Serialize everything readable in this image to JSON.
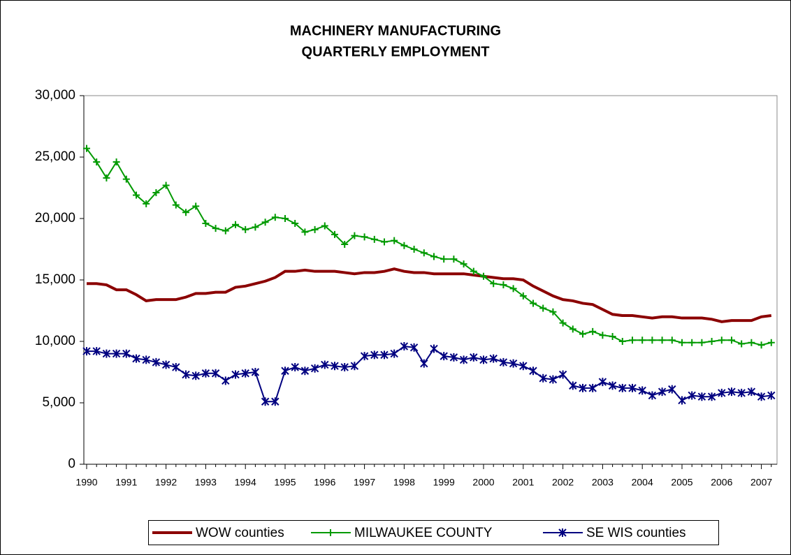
{
  "chart_data": {
    "type": "line",
    "title": "MACHINERY MANUFACTURING",
    "subtitle": "QUARTERLY EMPLOYMENT",
    "categories": [
      "1990",
      null,
      null,
      null,
      "1991",
      null,
      null,
      null,
      "1992",
      null,
      null,
      null,
      "1993",
      null,
      null,
      null,
      "1994",
      null,
      null,
      null,
      "1995",
      null,
      null,
      null,
      "1996",
      null,
      null,
      null,
      "1997",
      null,
      null,
      null,
      "1998",
      null,
      null,
      null,
      "1999",
      null,
      null,
      null,
      "2000",
      null,
      null,
      null,
      "2001",
      null,
      null,
      null,
      "2002",
      null,
      null,
      null,
      "2003",
      null,
      null,
      null,
      "2004",
      null,
      null,
      null,
      "2005",
      null,
      null,
      null,
      "2006",
      null,
      null,
      null,
      "2007",
      null
    ],
    "series": [
      {
        "name": "WOW counties",
        "color": "#8b0000",
        "marker": "none",
        "values": [
          14700,
          14700,
          14600,
          14200,
          14200,
          13800,
          13300,
          13400,
          13400,
          13400,
          13600,
          13900,
          13900,
          14000,
          14000,
          14400,
          14500,
          14700,
          14900,
          15200,
          15700,
          15700,
          15800,
          15700,
          15700,
          15700,
          15600,
          15500,
          15600,
          15600,
          15700,
          15900,
          15700,
          15600,
          15600,
          15500,
          15500,
          15500,
          15500,
          15400,
          15300,
          15200,
          15100,
          15100,
          15000,
          14500,
          14100,
          13700,
          13400,
          13300,
          13100,
          13000,
          12600,
          12200,
          12100,
          12100,
          12000,
          11900,
          12000,
          12000,
          11900,
          11900,
          11900,
          11800,
          11600,
          11700,
          11700,
          11700,
          12000,
          12100
        ]
      },
      {
        "name": "MILWAUKEE COUNTY",
        "color": "#009a00",
        "marker": "plus",
        "values": [
          25700,
          24600,
          23300,
          24600,
          23200,
          21900,
          21200,
          22100,
          22700,
          21100,
          20500,
          21000,
          19600,
          19200,
          19000,
          19500,
          19100,
          19300,
          19700,
          20100,
          20000,
          19600,
          18900,
          19100,
          19400,
          18700,
          17900,
          18600,
          18500,
          18300,
          18100,
          18200,
          17800,
          17500,
          17200,
          16900,
          16700,
          16700,
          16300,
          15700,
          15300,
          14700,
          14600,
          14300,
          13700,
          13100,
          12700,
          12400,
          11500,
          11000,
          10600,
          10800,
          10500,
          10400,
          10000,
          10100,
          10100,
          10100,
          10100,
          10100,
          9900,
          9900,
          9900,
          10000,
          10100,
          10100,
          9800,
          9900,
          9700,
          9900
        ]
      },
      {
        "name": "SE WIS counties",
        "color": "#000080",
        "marker": "asterisk",
        "values": [
          9200,
          9200,
          9000,
          9000,
          9000,
          8600,
          8500,
          8300,
          8100,
          7900,
          7300,
          7200,
          7400,
          7400,
          6800,
          7300,
          7400,
          7500,
          5100,
          5100,
          7600,
          7900,
          7600,
          7800,
          8100,
          8000,
          7900,
          8000,
          8800,
          8900,
          8900,
          9000,
          9600,
          9500,
          8200,
          9400,
          8800,
          8700,
          8500,
          8700,
          8500,
          8600,
          8300,
          8200,
          8000,
          7600,
          7000,
          6900,
          7300,
          6400,
          6200,
          6200,
          6700,
          6400,
          6200,
          6200,
          6000,
          5600,
          5900,
          6100,
          5200,
          5600,
          5500,
          5500,
          5800,
          5900,
          5800,
          5900,
          5500,
          5600
        ]
      }
    ],
    "ylim": [
      0,
      30000
    ],
    "yticks": [
      0,
      {
        "value": 5000,
        "label": "5,000"
      },
      {
        "value": 10000,
        "label": "10,000"
      },
      {
        "value": 15000,
        "label": "15,000"
      },
      {
        "value": 20000,
        "label": "20,000"
      },
      {
        "value": 25000,
        "label": "25,000"
      },
      {
        "value": 30000,
        "label": "30,000"
      }
    ],
    "grid": false,
    "legend": "bottom"
  }
}
